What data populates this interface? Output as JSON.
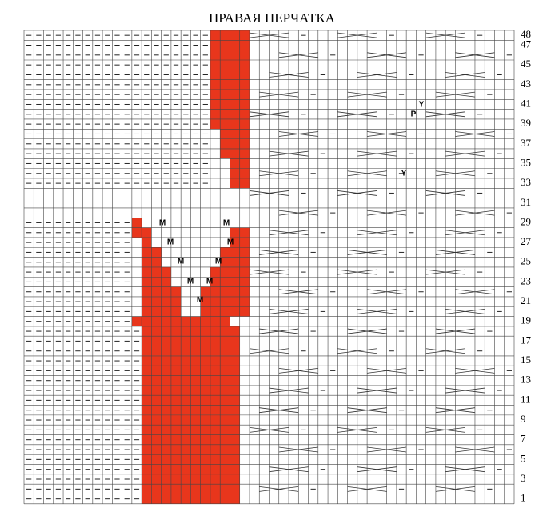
{
  "title": "ПРАВАЯ ПЕРЧАТКА",
  "row_numbers": [
    48,
    47,
    45,
    43,
    41,
    39,
    37,
    35,
    33,
    31,
    29,
    27,
    25,
    23,
    21,
    19,
    17,
    15,
    13,
    11,
    9,
    7,
    5,
    3,
    1
  ],
  "cell_symbols": [
    "M",
    "M",
    "M",
    "M",
    "M",
    "M",
    "M",
    "M",
    "M",
    "P",
    "Y",
    "Y"
  ]
}
